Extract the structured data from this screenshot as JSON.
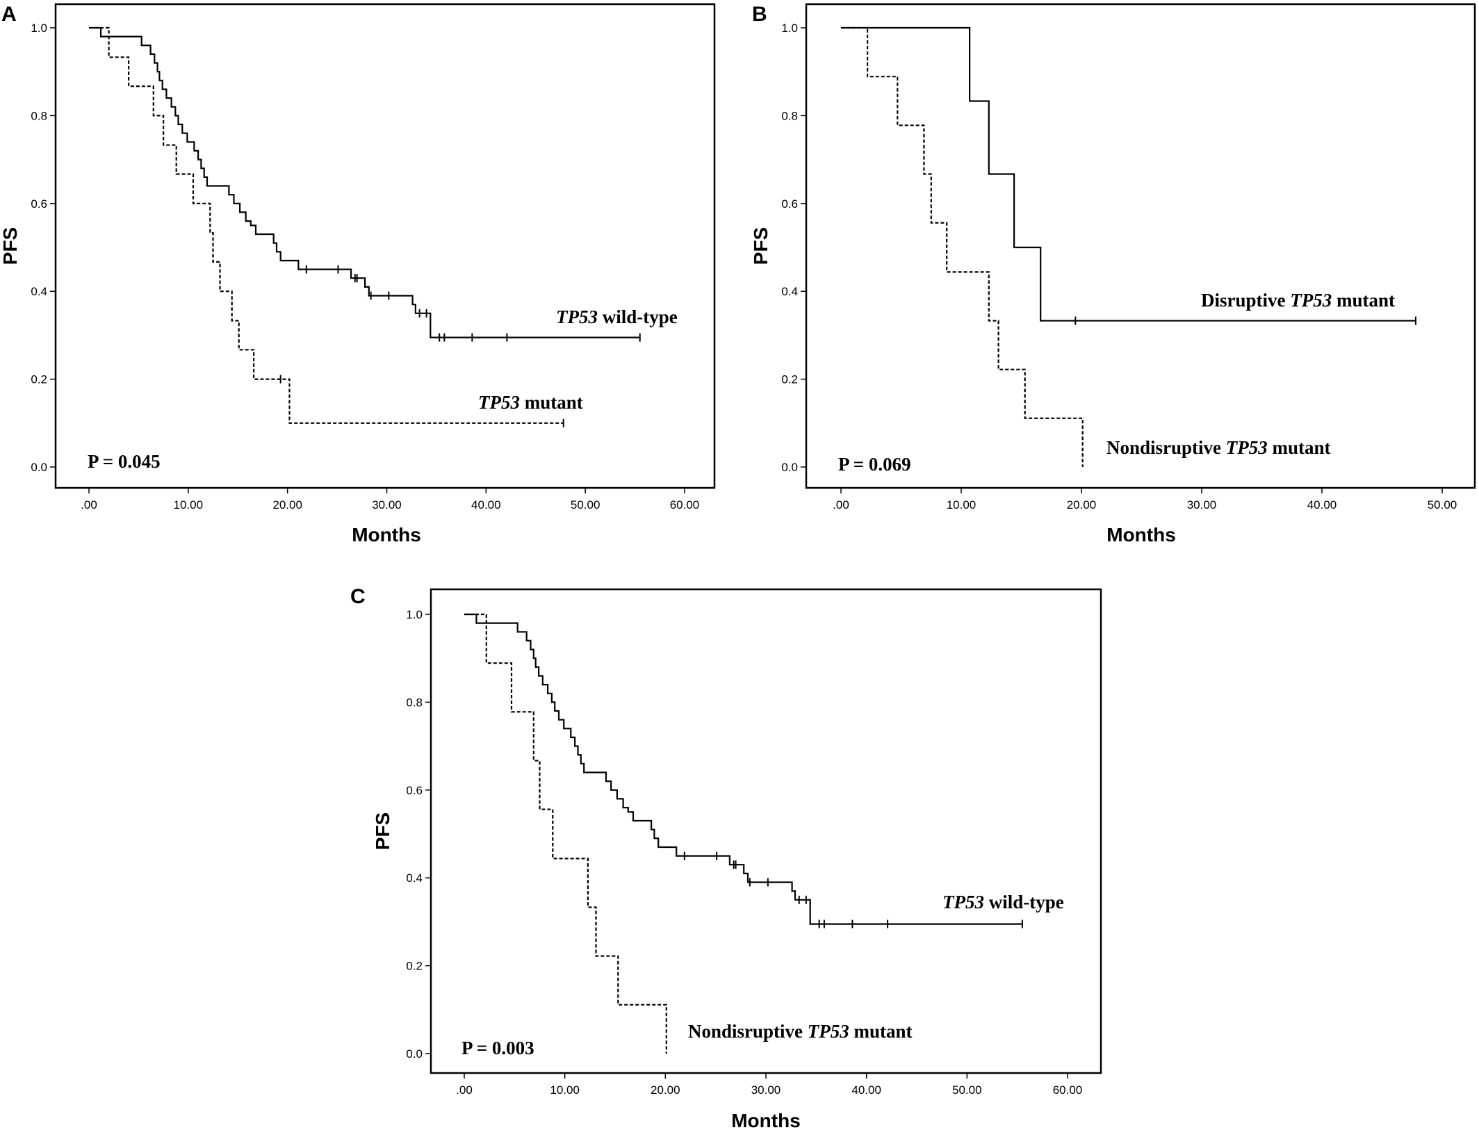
{
  "chart_data": [
    {
      "type": "line",
      "panel": "A",
      "xlabel": "Months",
      "ylabel": "PFS",
      "xlim": [
        0,
        60
      ],
      "ylim": [
        0,
        1
      ],
      "xticks": [
        ".00",
        "10.00",
        "20.00",
        "30.00",
        "40.00",
        "50.00",
        "60.00"
      ],
      "yticks": [
        "0.0",
        "0.2",
        "0.4",
        "0.6",
        "0.8",
        "1.0"
      ],
      "grid": false,
      "annotation": "P = 0.045",
      "series": [
        {
          "name": "TP53 wild-type",
          "line_style": "solid",
          "steps": [
            [
              0,
              1.0
            ],
            [
              1.2,
              0.98
            ],
            [
              5.3,
              0.96
            ],
            [
              6.2,
              0.94
            ],
            [
              6.6,
              0.92
            ],
            [
              6.9,
              0.9
            ],
            [
              7.1,
              0.88
            ],
            [
              7.4,
              0.86
            ],
            [
              7.8,
              0.84
            ],
            [
              8.3,
              0.82
            ],
            [
              8.7,
              0.8
            ],
            [
              9.0,
              0.78
            ],
            [
              9.4,
              0.76
            ],
            [
              9.9,
              0.74
            ],
            [
              10.6,
              0.72
            ],
            [
              11.0,
              0.7
            ],
            [
              11.3,
              0.68
            ],
            [
              11.6,
              0.66
            ],
            [
              11.9,
              0.64
            ],
            [
              14.1,
              0.62
            ],
            [
              14.6,
              0.6
            ],
            [
              15.2,
              0.58
            ],
            [
              15.8,
              0.56
            ],
            [
              16.3,
              0.55
            ],
            [
              16.8,
              0.53
            ],
            [
              18.6,
              0.51
            ],
            [
              18.9,
              0.49
            ],
            [
              19.3,
              0.47
            ],
            [
              21.1,
              0.45
            ],
            [
              26.4,
              0.43
            ],
            [
              27.8,
              0.41
            ],
            [
              28.2,
              0.39
            ],
            [
              32.6,
              0.37
            ],
            [
              32.9,
              0.35
            ],
            [
              34.4,
              0.295
            ]
          ],
          "end": 55.5,
          "censored": [
            [
              21.9,
              0.45
            ],
            [
              25.1,
              0.45
            ],
            [
              26.8,
              0.43
            ],
            [
              27.0,
              0.43
            ],
            [
              28.4,
              0.39
            ],
            [
              30.2,
              0.39
            ],
            [
              33.3,
              0.35
            ],
            [
              34.0,
              0.35
            ],
            [
              35.3,
              0.295
            ],
            [
              35.8,
              0.295
            ],
            [
              38.6,
              0.295
            ],
            [
              42.1,
              0.295
            ],
            [
              55.5,
              0.295
            ]
          ]
        },
        {
          "name": "TP53 mutant",
          "line_style": "dashed",
          "steps": [
            [
              0,
              1.0
            ],
            [
              2.0,
              0.933
            ],
            [
              4.0,
              0.867
            ],
            [
              6.5,
              0.8
            ],
            [
              7.5,
              0.733
            ],
            [
              8.8,
              0.667
            ],
            [
              10.5,
              0.6
            ],
            [
              12.2,
              0.533
            ],
            [
              12.5,
              0.467
            ],
            [
              13.2,
              0.4
            ],
            [
              14.4,
              0.333
            ],
            [
              15.1,
              0.267
            ],
            [
              16.6,
              0.2
            ],
            [
              20.2,
              0.1
            ]
          ],
          "end": 47.8,
          "censored": [
            [
              19.3,
              0.2
            ],
            [
              47.8,
              0.1
            ]
          ]
        }
      ],
      "labels": [
        "TP53 wild-type",
        "TP53 mutant"
      ]
    },
    {
      "type": "line",
      "panel": "B",
      "xlabel": "Months",
      "ylabel": "PFS",
      "xlim": [
        0,
        50
      ],
      "ylim": [
        0,
        1
      ],
      "xticks": [
        ".00",
        "10.00",
        "20.00",
        "30.00",
        "40.00",
        "50.00"
      ],
      "yticks": [
        "0.0",
        "0.2",
        "0.4",
        "0.6",
        "0.8",
        "1.0"
      ],
      "grid": false,
      "annotation": "P = 0.069",
      "series": [
        {
          "name": "Disruptive TP53 mutant",
          "line_style": "solid",
          "steps": [
            [
              0,
              1.0
            ],
            [
              10.7,
              0.833
            ],
            [
              12.3,
              0.667
            ],
            [
              14.4,
              0.5
            ],
            [
              16.6,
              0.333
            ]
          ],
          "end": 47.8,
          "censored": [
            [
              19.5,
              0.333
            ],
            [
              47.8,
              0.333
            ]
          ]
        },
        {
          "name": "Nondisruptive TP53 mutant",
          "line_style": "dashed",
          "steps": [
            [
              0,
              1.0
            ],
            [
              2.2,
              0.889
            ],
            [
              4.7,
              0.778
            ],
            [
              6.9,
              0.667
            ],
            [
              7.5,
              0.556
            ],
            [
              8.8,
              0.444
            ],
            [
              12.3,
              0.333
            ],
            [
              13.1,
              0.222
            ],
            [
              15.3,
              0.111
            ],
            [
              20.1,
              0.0
            ]
          ],
          "end": 20.1,
          "censored": []
        }
      ],
      "labels": [
        "Disruptive TP53 mutant",
        "Nondisruptive TP53 mutant"
      ]
    },
    {
      "type": "line",
      "panel": "C",
      "xlabel": "Months",
      "ylabel": "PFS",
      "xlim": [
        0,
        60
      ],
      "ylim": [
        0,
        1
      ],
      "xticks": [
        ".00",
        "10.00",
        "20.00",
        "30.00",
        "40.00",
        "50.00",
        "60.00"
      ],
      "yticks": [
        "0.0",
        "0.2",
        "0.4",
        "0.6",
        "0.8",
        "1.0"
      ],
      "grid": false,
      "annotation": "P = 0.003",
      "series": [
        {
          "name": "TP53 wild-type",
          "line_style": "solid",
          "steps": [
            [
              0,
              1.0
            ],
            [
              1.2,
              0.98
            ],
            [
              5.3,
              0.96
            ],
            [
              6.2,
              0.94
            ],
            [
              6.6,
              0.92
            ],
            [
              6.9,
              0.9
            ],
            [
              7.1,
              0.88
            ],
            [
              7.4,
              0.86
            ],
            [
              7.8,
              0.84
            ],
            [
              8.3,
              0.82
            ],
            [
              8.7,
              0.8
            ],
            [
              9.0,
              0.78
            ],
            [
              9.4,
              0.76
            ],
            [
              9.9,
              0.74
            ],
            [
              10.6,
              0.72
            ],
            [
              11.0,
              0.7
            ],
            [
              11.3,
              0.68
            ],
            [
              11.6,
              0.66
            ],
            [
              11.9,
              0.64
            ],
            [
              14.1,
              0.62
            ],
            [
              14.6,
              0.6
            ],
            [
              15.2,
              0.58
            ],
            [
              15.8,
              0.56
            ],
            [
              16.3,
              0.55
            ],
            [
              16.8,
              0.53
            ],
            [
              18.6,
              0.51
            ],
            [
              18.9,
              0.49
            ],
            [
              19.3,
              0.47
            ],
            [
              21.1,
              0.45
            ],
            [
              26.4,
              0.43
            ],
            [
              27.8,
              0.41
            ],
            [
              28.2,
              0.39
            ],
            [
              32.6,
              0.37
            ],
            [
              32.9,
              0.35
            ],
            [
              34.4,
              0.295
            ]
          ],
          "end": 55.5,
          "censored": [
            [
              21.9,
              0.45
            ],
            [
              25.1,
              0.45
            ],
            [
              26.8,
              0.43
            ],
            [
              27.0,
              0.43
            ],
            [
              28.4,
              0.39
            ],
            [
              30.2,
              0.39
            ],
            [
              33.3,
              0.35
            ],
            [
              34.0,
              0.35
            ],
            [
              35.3,
              0.295
            ],
            [
              35.8,
              0.295
            ],
            [
              38.6,
              0.295
            ],
            [
              42.1,
              0.295
            ],
            [
              55.5,
              0.295
            ]
          ]
        },
        {
          "name": "Nondisruptive TP53 mutant",
          "line_style": "dashed",
          "steps": [
            [
              0,
              1.0
            ],
            [
              2.2,
              0.889
            ],
            [
              4.7,
              0.778
            ],
            [
              6.9,
              0.667
            ],
            [
              7.5,
              0.556
            ],
            [
              8.8,
              0.444
            ],
            [
              12.3,
              0.333
            ],
            [
              13.1,
              0.222
            ],
            [
              15.3,
              0.111
            ],
            [
              20.1,
              0.0
            ]
          ],
          "end": 20.1,
          "censored": []
        }
      ],
      "labels": [
        "TP53 wild-type",
        "Nondisruptive TP53 mutant"
      ]
    }
  ]
}
